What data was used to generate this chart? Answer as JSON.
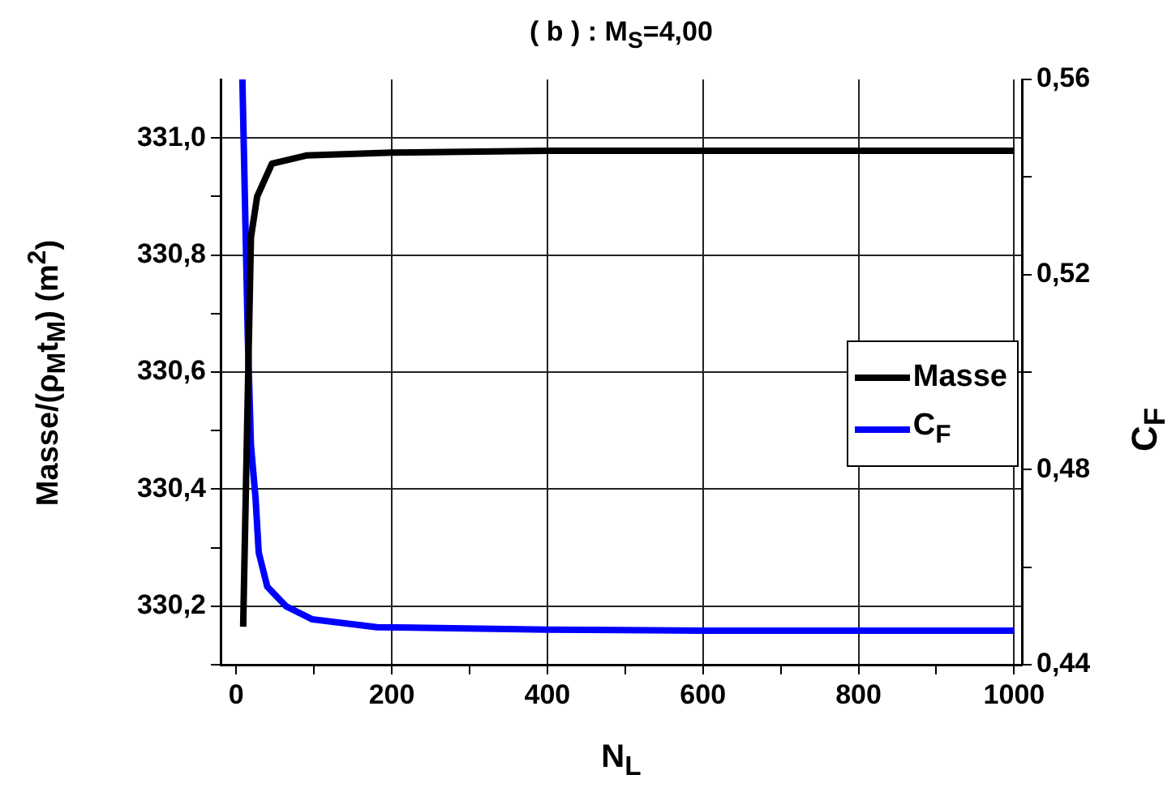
{
  "chart_data": {
    "type": "line",
    "title": "( b ) : M$_{S}$=4,00",
    "xlabel": "N$_{L}$",
    "ylabel": "Masse/(ρ$_{M}$t$_{M}$) (m$^{2}$)",
    "y2label": "C$_{F}$",
    "xlim": [
      -20,
      1010
    ],
    "xticks": [
      0,
      {
        "value": 100,
        "label": null
      },
      200,
      {
        "value": 300,
        "label": null
      },
      400,
      {
        "value": 500,
        "label": null
      },
      600,
      {
        "value": 700,
        "label": null
      },
      800,
      {
        "value": 900,
        "label": null
      },
      1000
    ],
    "ylim": [
      330.1,
      331.1
    ],
    "yticks": [
      {
        "value": 330.1,
        "label": null
      },
      {
        "value": 330.2,
        "label": "330,2"
      },
      {
        "value": 330.3,
        "label": null
      },
      {
        "value": 330.4,
        "label": "330,4"
      },
      {
        "value": 330.5,
        "label": null
      },
      {
        "value": 330.6,
        "label": "330,6"
      },
      {
        "value": 330.7,
        "label": null
      },
      {
        "value": 330.8,
        "label": "330,8"
      },
      {
        "value": 330.9,
        "label": null
      },
      {
        "value": 331.0,
        "label": "331,0"
      }
    ],
    "y2lim": [
      0.44,
      0.56
    ],
    "y2ticks": [
      {
        "value": 0.44,
        "label": "0,44"
      },
      {
        "value": 0.46,
        "label": null
      },
      {
        "value": 0.48,
        "label": "0,48"
      },
      {
        "value": 0.5,
        "label": null
      },
      {
        "value": 0.52,
        "label": "0,52"
      },
      {
        "value": 0.54,
        "label": null
      },
      {
        "value": 0.56,
        "label": "0,56"
      }
    ],
    "grid": true,
    "legend": "right",
    "marker": "none",
    "line_style": "solid",
    "series": [
      {
        "name": "Masse",
        "color": "#000000",
        "x": [
          9,
          14,
          19,
          27,
          46,
          90,
          200,
          400,
          600,
          800,
          1000
        ],
        "values": [
          330.165,
          330.5,
          330.83,
          330.9,
          330.956,
          330.97,
          330.975,
          330.978,
          330.978,
          330.978,
          330.978
        ]
      },
      {
        "name": "C$_{F}$",
        "color": "#0000ff",
        "axis": "y2",
        "x": [
          8,
          15,
          19,
          25,
          29,
          40,
          64,
          98,
          181,
          400,
          600,
          800,
          1000
        ],
        "values": [
          0.56,
          0.507,
          0.485,
          0.474,
          0.463,
          0.456,
          0.452,
          0.4493,
          0.4477,
          0.4472,
          0.447,
          0.447,
          0.447
        ]
      }
    ]
  }
}
